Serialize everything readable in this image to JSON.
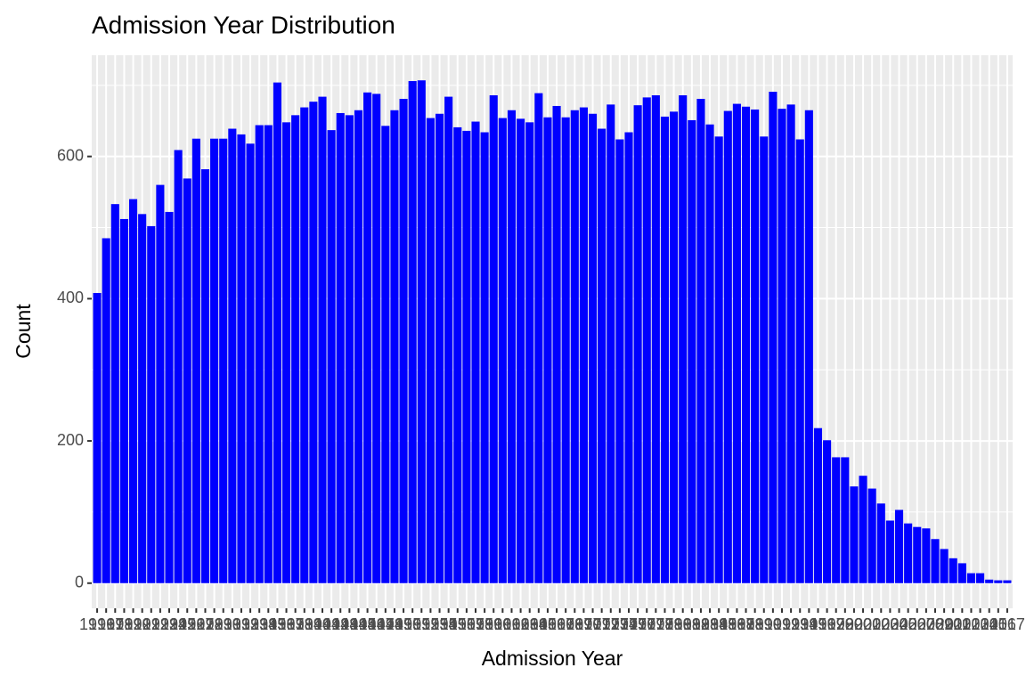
{
  "chart_data": {
    "type": "bar",
    "title": "Admission Year Distribution",
    "x_label": "Admission Year",
    "y_label": "Count",
    "categories": [
      "1916",
      "1917",
      "1918",
      "1919",
      "1920",
      "1921",
      "1922",
      "1923",
      "1924",
      "1925",
      "1926",
      "1927",
      "1928",
      "1929",
      "1930",
      "1931",
      "1932",
      "1933",
      "1934",
      "1935",
      "1936",
      "1937",
      "1938",
      "1939",
      "1940",
      "1941",
      "1942",
      "1943",
      "1944",
      "1945",
      "1946",
      "1947",
      "1948",
      "1949",
      "1950",
      "1951",
      "1952",
      "1953",
      "1954",
      "1955",
      "1956",
      "1957",
      "1958",
      "1959",
      "1960",
      "1961",
      "1962",
      "1963",
      "1964",
      "1965",
      "1966",
      "1967",
      "1968",
      "1969",
      "1970",
      "1971",
      "1972",
      "1973",
      "1974",
      "1975",
      "1976",
      "1977",
      "1978",
      "1979",
      "1980",
      "1981",
      "1982",
      "1983",
      "1984",
      "1985",
      "1986",
      "1987",
      "1988",
      "1989",
      "1990",
      "1991",
      "1992",
      "1993",
      "1994",
      "1995",
      "1996",
      "1997",
      "1998",
      "1999",
      "2000",
      "2001",
      "2002",
      "2003",
      "2004",
      "2005",
      "2006",
      "2007",
      "2008",
      "2009",
      "2010",
      "2011",
      "2012",
      "2013",
      "2014",
      "2015",
      "2016",
      "2017"
    ],
    "values": [
      408,
      485,
      533,
      512,
      540,
      519,
      502,
      560,
      522,
      609,
      569,
      625,
      582,
      625,
      625,
      639,
      631,
      618,
      644,
      644,
      704,
      648,
      658,
      669,
      677,
      684,
      637,
      661,
      658,
      665,
      690,
      688,
      643,
      665,
      681,
      706,
      707,
      654,
      660,
      684,
      641,
      636,
      649,
      634,
      686,
      654,
      665,
      653,
      648,
      689,
      655,
      671,
      655,
      665,
      669,
      660,
      639,
      673,
      624,
      634,
      672,
      683,
      686,
      656,
      663,
      686,
      651,
      681,
      645,
      628,
      664,
      674,
      670,
      666,
      628,
      691,
      667,
      673,
      624,
      665,
      218,
      201,
      177,
      177,
      136,
      151,
      133,
      112,
      88,
      103,
      84,
      79,
      77,
      62,
      48,
      35,
      28,
      14,
      14,
      5,
      4,
      4
    ],
    "color": "#0000ff",
    "ylim": [
      -35.35,
      742.35
    ],
    "yticks": [
      0,
      200,
      400,
      600
    ],
    "minor_yticks": [
      100,
      300,
      500,
      700
    ],
    "grid": true
  }
}
